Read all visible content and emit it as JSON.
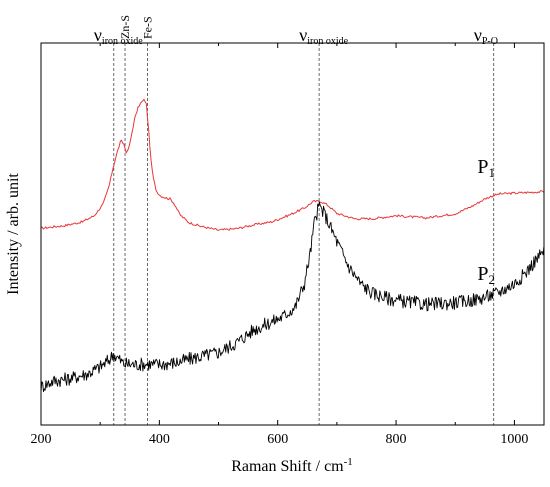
{
  "chart_data": {
    "type": "line",
    "xlabel": "Raman Shift / cm",
    "xlabel_sup": "-1",
    "ylabel": "Intensity / arb. unit",
    "xlim": [
      200,
      1050
    ],
    "ylim": [
      0,
      1
    ],
    "x_ticks": [
      200,
      400,
      600,
      800,
      1000
    ],
    "y_ticks_labeled": false,
    "grid": false,
    "reference_lines": [
      {
        "x": 323,
        "label_main": "ν",
        "label_sub": "iron oxide",
        "rotated": false
      },
      {
        "x": 342,
        "label_main": "Zn-S",
        "label_sub": "",
        "rotated": true
      },
      {
        "x": 380,
        "label_main": "Fe-S",
        "label_sub": "",
        "rotated": true
      },
      {
        "x": 670,
        "label_main": "ν",
        "label_sub": "iron oxide",
        "rotated": false
      },
      {
        "x": 965,
        "label_main": "ν",
        "label_sub": "P-O",
        "rotated": false
      }
    ],
    "series": [
      {
        "name": "P",
        "name_sub": "1",
        "color": "#e8373a",
        "label_x": 880,
        "label_y": 0.66,
        "x": [
          200,
          240,
          270,
          290,
          305,
          315,
          322,
          328,
          335,
          340,
          345,
          350,
          358,
          365,
          370,
          375,
          378,
          382,
          386,
          390,
          395,
          402,
          410,
          418,
          425,
          435,
          450,
          470,
          500,
          530,
          560,
          590,
          620,
          645,
          660,
          672,
          685,
          700,
          730,
          760,
          800,
          850,
          900,
          930,
          950,
          963,
          975,
          1000,
          1025,
          1050
        ],
        "y": [
          0.515,
          0.522,
          0.532,
          0.548,
          0.578,
          0.625,
          0.675,
          0.71,
          0.745,
          0.735,
          0.71,
          0.735,
          0.8,
          0.835,
          0.845,
          0.852,
          0.84,
          0.77,
          0.69,
          0.645,
          0.612,
          0.6,
          0.595,
          0.592,
          0.58,
          0.55,
          0.53,
          0.52,
          0.51,
          0.514,
          0.524,
          0.532,
          0.55,
          0.568,
          0.585,
          0.586,
          0.575,
          0.554,
          0.54,
          0.54,
          0.548,
          0.542,
          0.553,
          0.574,
          0.592,
          0.6,
          0.605,
          0.607,
          0.609,
          0.611
        ]
      },
      {
        "name": "P",
        "name_sub": "2",
        "color": "#000000",
        "label_x": 880,
        "label_y": 0.38,
        "x": [
          200,
          220,
          250,
          280,
          300,
          315,
          322,
          330,
          340,
          360,
          380,
          400,
          430,
          460,
          500,
          530,
          560,
          590,
          610,
          630,
          645,
          655,
          662,
          670,
          680,
          700,
          720,
          740,
          760,
          790,
          820,
          850,
          880,
          910,
          940,
          970,
          1000,
          1020,
          1035,
          1050
        ],
        "y": [
          0.1,
          0.115,
          0.122,
          0.135,
          0.152,
          0.17,
          0.185,
          0.175,
          0.16,
          0.158,
          0.16,
          0.158,
          0.164,
          0.176,
          0.19,
          0.215,
          0.25,
          0.27,
          0.285,
          0.31,
          0.37,
          0.45,
          0.53,
          0.575,
          0.55,
          0.48,
          0.415,
          0.37,
          0.345,
          0.33,
          0.322,
          0.316,
          0.318,
          0.322,
          0.33,
          0.345,
          0.37,
          0.4,
          0.43,
          0.455
        ]
      }
    ]
  }
}
